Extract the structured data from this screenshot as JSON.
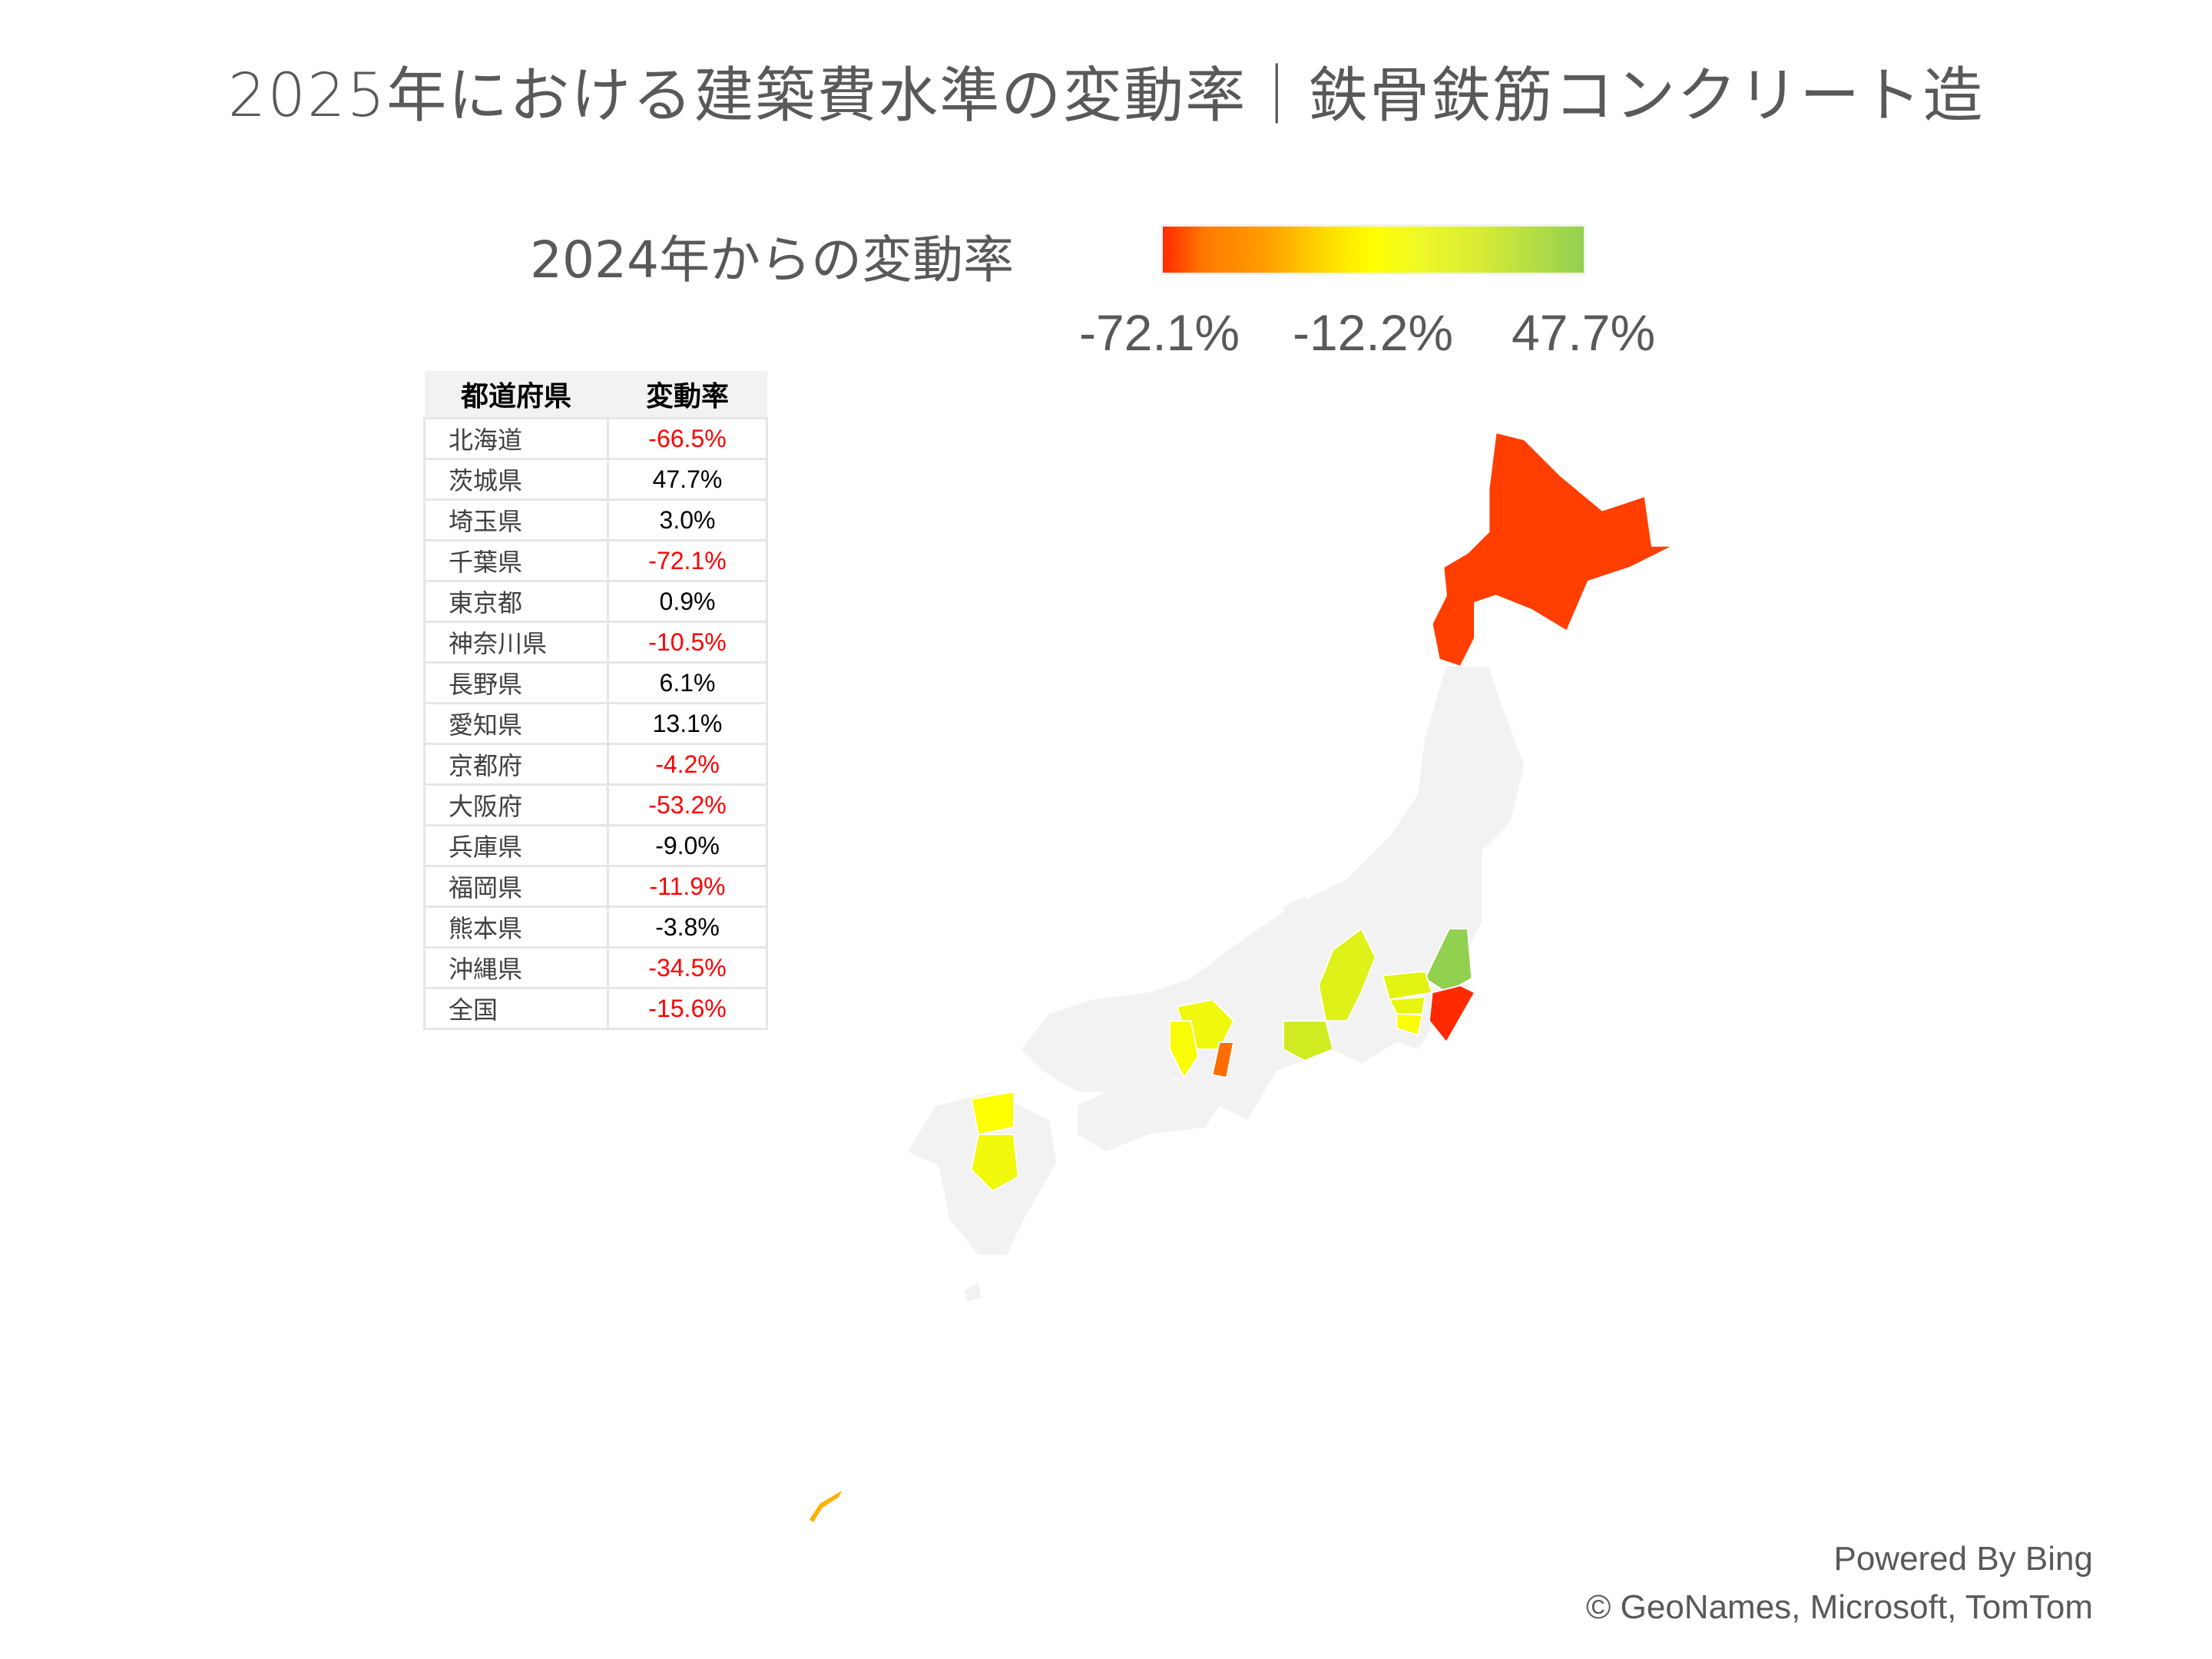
{
  "title": "2025年における建築費水準の変動率｜鉄骨鉄筋コンクリート造",
  "legend": {
    "title": "2024年からの変動率",
    "min_label": "-72.1%",
    "mid_label": "-12.2%",
    "max_label": "47.7%",
    "min": -72.1,
    "mid": -12.2,
    "max": 47.7,
    "colors": {
      "min": "#ff2a00",
      "mid": "#ffff00",
      "max": "#92d050"
    }
  },
  "table": {
    "headers": [
      "都道府県",
      "変動率"
    ],
    "negative_color": "#ff0000",
    "rows": [
      {
        "name": "北海道",
        "value": "-66.5%",
        "num": -66.5,
        "red": true
      },
      {
        "name": "茨城県",
        "value": "47.7%",
        "num": 47.7,
        "red": false
      },
      {
        "name": "埼玉県",
        "value": "3.0%",
        "num": 3.0,
        "red": false
      },
      {
        "name": "千葉県",
        "value": "-72.1%",
        "num": -72.1,
        "red": true
      },
      {
        "name": "東京都",
        "value": "0.9%",
        "num": 0.9,
        "red": false
      },
      {
        "name": "神奈川県",
        "value": "-10.5%",
        "num": -10.5,
        "red": true
      },
      {
        "name": "長野県",
        "value": "6.1%",
        "num": 6.1,
        "red": false
      },
      {
        "name": "愛知県",
        "value": "13.1%",
        "num": 13.1,
        "red": false
      },
      {
        "name": "京都府",
        "value": "-4.2%",
        "num": -4.2,
        "red": true
      },
      {
        "name": "大阪府",
        "value": "-53.2%",
        "num": -53.2,
        "red": true
      },
      {
        "name": "兵庫県",
        "value": "-9.0%",
        "num": -9.0,
        "red": false
      },
      {
        "name": "福岡県",
        "value": "-11.9%",
        "num": -11.9,
        "red": true
      },
      {
        "name": "熊本県",
        "value": "-3.8%",
        "num": -3.8,
        "red": false
      },
      {
        "name": "沖縄県",
        "value": "-34.5%",
        "num": -34.5,
        "red": true
      },
      {
        "name": "全国",
        "value": "-15.6%",
        "num": -15.6,
        "red": true
      }
    ]
  },
  "map": {
    "no_data_color": "#f2f2f2"
  },
  "attribution": {
    "line1": "Powered By Bing",
    "line2": "© GeoNames, Microsoft, TomTom"
  }
}
